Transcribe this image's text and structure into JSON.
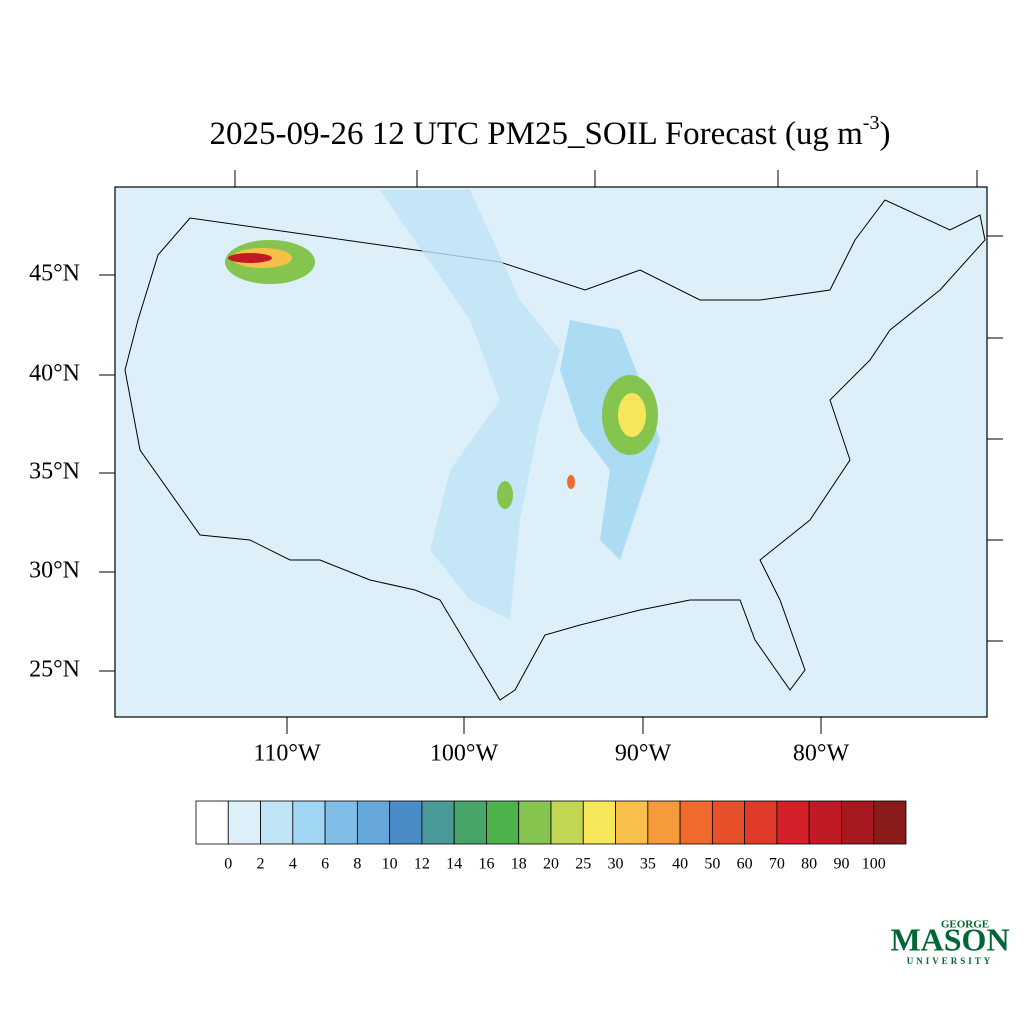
{
  "title": {
    "text": "2025-09-26 12 UTC PM25_SOIL Forecast (ug m",
    "superscript": "-3",
    "closing": ")"
  },
  "latitude_labels": [
    "45°N",
    "40°N",
    "35°N",
    "30°N",
    "25°N"
  ],
  "longitude_labels": [
    "110°W",
    "100°W",
    "90°W",
    "80°W"
  ],
  "colorbar": {
    "levels": [
      0,
      2,
      4,
      6,
      8,
      10,
      12,
      14,
      16,
      18,
      20,
      25,
      30,
      35,
      40,
      50,
      60,
      70,
      80,
      90,
      100
    ],
    "colors": [
      "#ffffff",
      "#ddf0fa",
      "#bfe4f6",
      "#a0d6f3",
      "#80bde6",
      "#66a8dc",
      "#4a8cc8",
      "#4a9a9a",
      "#48a56a",
      "#4bb34a",
      "#84c44f",
      "#c3d653",
      "#f7e65a",
      "#f8c04a",
      "#f79a3c",
      "#f06a2d",
      "#e6502b",
      "#e03a28",
      "#d42029",
      "#c01b25",
      "#a8191f",
      "#8b1a1a"
    ]
  },
  "logo": {
    "top": "GEORGE",
    "middle": "MASON",
    "bottom": "UNIVERSITY"
  }
}
